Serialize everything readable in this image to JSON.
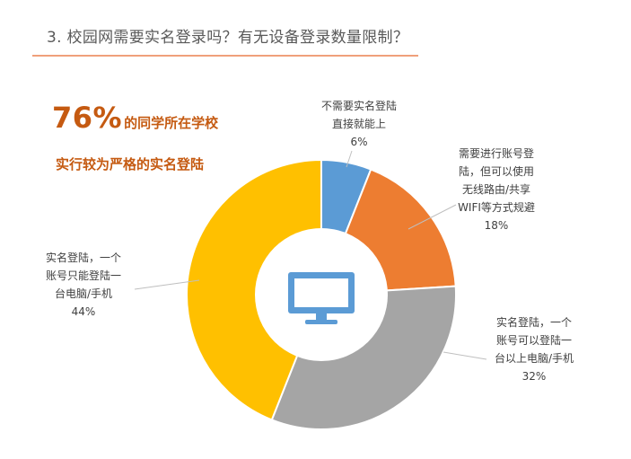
{
  "header": {
    "title": "3. 校园网需要实名登录吗？有无设备登录数量限制？"
  },
  "highlight": {
    "percent": "76%",
    "line1_rest": "的同学所在学校",
    "line2": "实行较为严格的实名登陆"
  },
  "colors": {
    "accent": "#c55a11",
    "title_rule": "#f0a07a",
    "icon": "#5b9bd5"
  },
  "center_icon": "monitor-icon",
  "chart_data": {
    "type": "pie",
    "donut": true,
    "title": "",
    "slices": [
      {
        "label_lines": [
          "不需要实名登陆",
          "直接就能上",
          "6%"
        ],
        "value": 6,
        "color": "#5b9bd5"
      },
      {
        "label_lines": [
          "需要进行账号登",
          "陆，但可以使用",
          "无线路由/共享",
          "WIFI等方式规避",
          "18%"
        ],
        "value": 18,
        "color": "#ed7d31"
      },
      {
        "label_lines": [
          "实名登陆，一个",
          "账号可以登陆一",
          "台以上电脑/手机",
          "32%"
        ],
        "value": 32,
        "color": "#a5a5a5"
      },
      {
        "label_lines": [
          "实名登陆，一个",
          "账号只能登陆一",
          "台电脑/手机",
          "44%"
        ],
        "value": 44,
        "color": "#ffc000"
      }
    ]
  }
}
